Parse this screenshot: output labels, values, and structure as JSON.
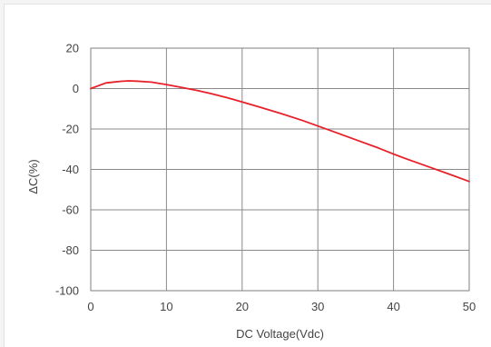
{
  "chart_data": {
    "type": "line",
    "title": "",
    "xlabel": "DC Voltage(Vdc)",
    "ylabel": "ΔC(%)",
    "xlim": [
      0,
      50
    ],
    "ylim": [
      -100,
      20
    ],
    "x_ticks": [
      "0",
      "10",
      "20",
      "30",
      "40",
      "50"
    ],
    "y_ticks": [
      "20",
      "0",
      "-20",
      "-40",
      "-60",
      "-80",
      "-100"
    ],
    "grid": true,
    "series": [
      {
        "color": "#e8202a",
        "x": [
          0,
          2,
          4,
          5,
          6,
          8,
          10,
          12,
          14,
          16,
          18,
          20,
          22,
          25,
          28,
          30,
          32,
          35,
          38,
          40,
          42,
          45,
          48,
          50
        ],
        "y": [
          0,
          2.8,
          3.6,
          3.8,
          3.7,
          3.2,
          2.0,
          0.6,
          -0.9,
          -2.6,
          -4.5,
          -6.6,
          -8.8,
          -12.2,
          -15.8,
          -18.5,
          -21.2,
          -25.3,
          -29.4,
          -32.4,
          -35.2,
          -39.2,
          -43.2,
          -46.0
        ]
      }
    ]
  }
}
